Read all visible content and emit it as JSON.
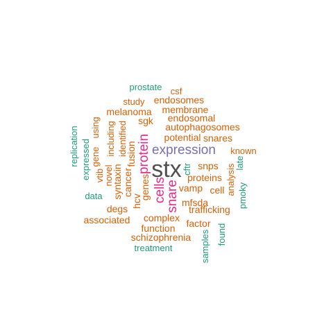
{
  "colors": {
    "orange": "#d95f02",
    "teal": "#1b9e77",
    "purple": "#7570b3",
    "magenta": "#e7298a",
    "gray": "#505050"
  },
  "words": [
    {
      "text": "stx",
      "color": "gray"
    },
    {
      "text": "expression",
      "color": "purple"
    },
    {
      "text": "protein",
      "color": "magenta"
    },
    {
      "text": "cells",
      "color": "magenta"
    },
    {
      "text": "snare",
      "color": "magenta"
    },
    {
      "text": "prostate",
      "color": "teal"
    },
    {
      "text": "csf",
      "color": "orange"
    },
    {
      "text": "study",
      "color": "orange"
    },
    {
      "text": "endosomes",
      "color": "orange"
    },
    {
      "text": "melanoma",
      "color": "orange"
    },
    {
      "text": "membrane",
      "color": "orange"
    },
    {
      "text": "sgk",
      "color": "orange"
    },
    {
      "text": "endosomal",
      "color": "orange"
    },
    {
      "text": "autophagosomes",
      "color": "orange"
    },
    {
      "text": "potential",
      "color": "orange"
    },
    {
      "text": "snares",
      "color": "orange"
    },
    {
      "text": "known",
      "color": "orange"
    },
    {
      "text": "snps",
      "color": "orange"
    },
    {
      "text": "proteins",
      "color": "orange"
    },
    {
      "text": "vamp",
      "color": "orange"
    },
    {
      "text": "cell",
      "color": "orange"
    },
    {
      "text": "mfsda",
      "color": "orange"
    },
    {
      "text": "trafficking",
      "color": "orange"
    },
    {
      "text": "degs",
      "color": "orange"
    },
    {
      "text": "complex",
      "color": "orange"
    },
    {
      "text": "associated",
      "color": "orange"
    },
    {
      "text": "factor",
      "color": "orange"
    },
    {
      "text": "function",
      "color": "orange"
    },
    {
      "text": "schizophrenia",
      "color": "orange"
    },
    {
      "text": "treatment",
      "color": "teal"
    },
    {
      "text": "data",
      "color": "teal"
    },
    {
      "text": "replication",
      "color": "teal"
    },
    {
      "text": "expressed",
      "color": "teal"
    },
    {
      "text": "gene",
      "color": "orange"
    },
    {
      "text": "using",
      "color": "orange"
    },
    {
      "text": "vtib",
      "color": "orange"
    },
    {
      "text": "novel",
      "color": "orange"
    },
    {
      "text": "including",
      "color": "orange"
    },
    {
      "text": "syntaxin",
      "color": "orange"
    },
    {
      "text": "identified",
      "color": "orange"
    },
    {
      "text": "cancer",
      "color": "orange"
    },
    {
      "text": "fusion",
      "color": "orange"
    },
    {
      "text": "hcv",
      "color": "orange"
    },
    {
      "text": "genes",
      "color": "orange"
    },
    {
      "text": "cftr",
      "color": "teal"
    },
    {
      "text": "late",
      "color": "teal"
    },
    {
      "text": "analysis",
      "color": "orange"
    },
    {
      "text": "pmoky",
      "color": "teal"
    },
    {
      "text": "found",
      "color": "teal"
    },
    {
      "text": "samples",
      "color": "teal"
    }
  ]
}
